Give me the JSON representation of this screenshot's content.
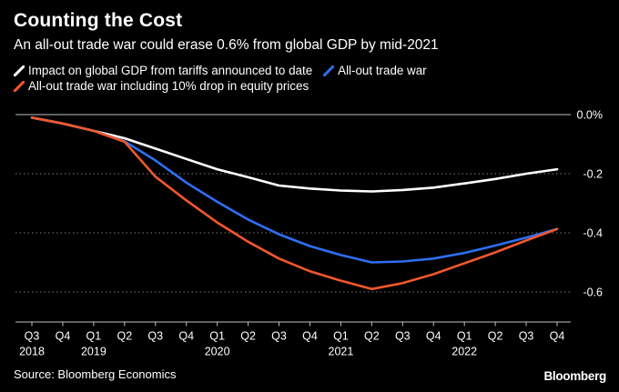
{
  "header": {
    "title": "Counting the Cost",
    "subtitle": "An all-out trade war could erase 0.6% from global GDP by mid-2021"
  },
  "footer": {
    "source": "Source: Bloomberg Economics",
    "brand": "Bloomberg"
  },
  "chart_data": {
    "type": "line",
    "title": "Counting the Cost",
    "subtitle": "An all-out trade war could erase 0.6% from global GDP by mid-2021",
    "xlabel": "",
    "ylabel": "",
    "categories": [
      "Q3",
      "Q4",
      "Q1",
      "Q2",
      "Q3",
      "Q4",
      "Q1",
      "Q2",
      "Q3",
      "Q4",
      "Q1",
      "Q2",
      "Q3",
      "Q4",
      "Q1",
      "Q2",
      "Q3",
      "Q4"
    ],
    "year_labels": [
      {
        "index": 0,
        "label": "2018"
      },
      {
        "index": 2,
        "label": "2019"
      },
      {
        "index": 6,
        "label": "2020"
      },
      {
        "index": 10,
        "label": "2021"
      },
      {
        "index": 14,
        "label": "2022"
      }
    ],
    "y_ticks": [
      {
        "value": 0,
        "label": "0.0%"
      },
      {
        "value": -0.2,
        "label": "-0.2"
      },
      {
        "value": -0.4,
        "label": "-0.4"
      },
      {
        "value": -0.6,
        "label": "-0.6"
      }
    ],
    "ylim": [
      -0.7,
      0
    ],
    "grid": true,
    "legend_position": "top",
    "series": [
      {
        "name": "Impact on global GDP from tariffs announced to date",
        "color": "#ffffff",
        "values": [
          -0.01,
          -0.03,
          -0.055,
          -0.08,
          -0.115,
          -0.15,
          -0.185,
          -0.212,
          -0.24,
          -0.25,
          -0.257,
          -0.26,
          -0.255,
          -0.247,
          -0.233,
          -0.218,
          -0.2,
          -0.185
        ]
      },
      {
        "name": "All-out trade war",
        "color": "#2e6ff2",
        "values": [
          -0.01,
          -0.03,
          -0.055,
          -0.09,
          -0.155,
          -0.23,
          -0.295,
          -0.355,
          -0.405,
          -0.445,
          -0.475,
          -0.5,
          -0.497,
          -0.487,
          -0.468,
          -0.443,
          -0.416,
          -0.387
        ]
      },
      {
        "name": "All-out trade war including 10% drop in equity prices",
        "color": "#f2572c",
        "values": [
          -0.01,
          -0.03,
          -0.055,
          -0.092,
          -0.21,
          -0.29,
          -0.365,
          -0.43,
          -0.487,
          -0.53,
          -0.562,
          -0.59,
          -0.57,
          -0.54,
          -0.503,
          -0.466,
          -0.426,
          -0.387
        ]
      }
    ]
  }
}
